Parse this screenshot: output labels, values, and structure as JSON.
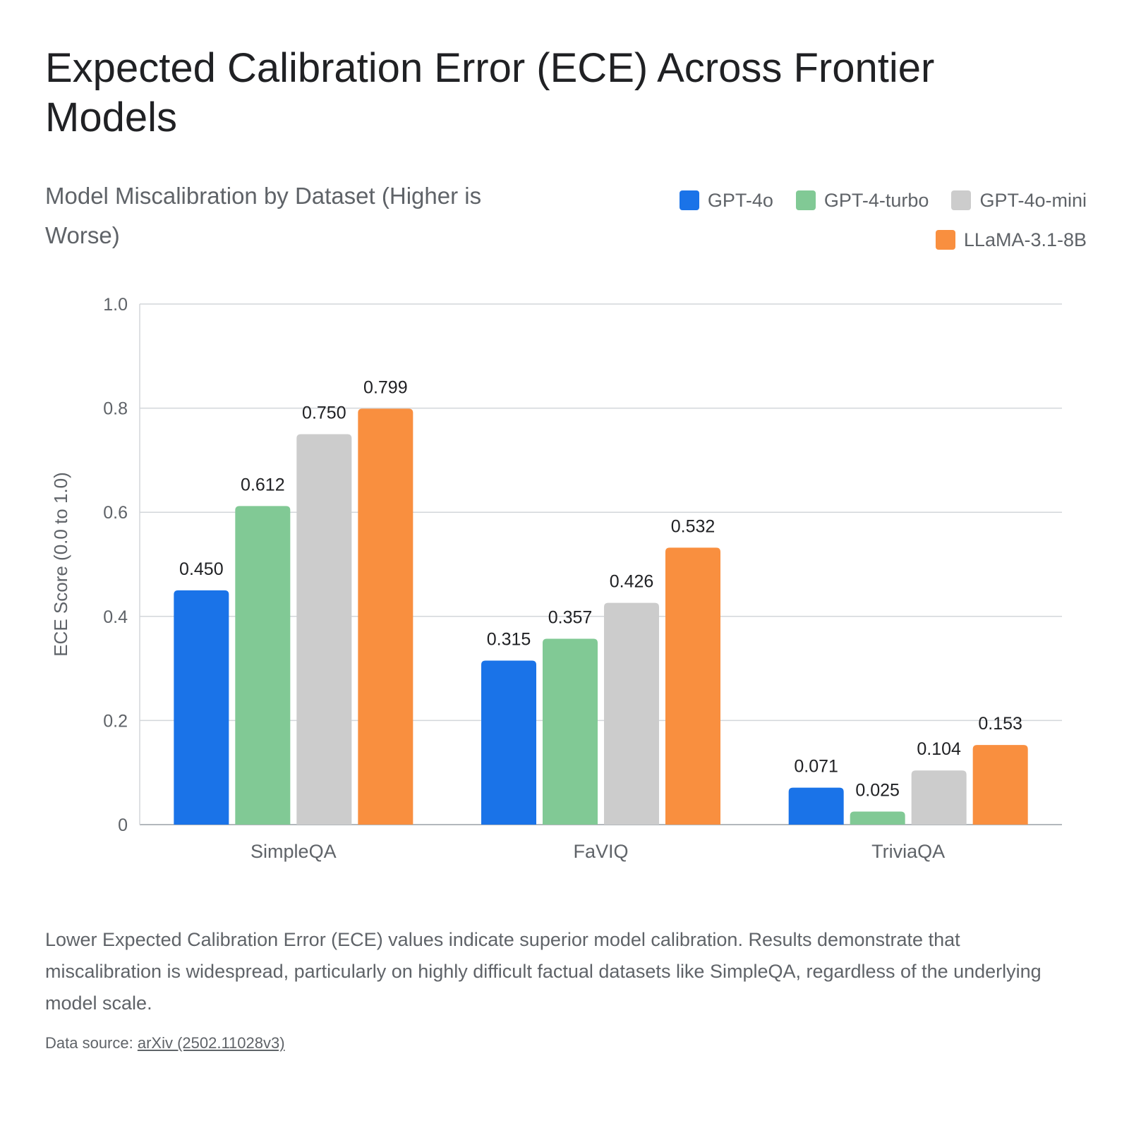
{
  "title": "Expected Calibration Error (ECE) Across Frontier Models",
  "subtitle": "Model Miscalibration by Dataset (Higher is Worse)",
  "caption": "Lower Expected Calibration Error (ECE) values indicate superior model calibration. Results demonstrate that miscalibration is widespread, particularly on highly difficult factual datasets like SimpleQA, regardless of the underlying model scale.",
  "source": {
    "prefix": "Data source: ",
    "link_text": "arXiv (2502.11028v3)"
  },
  "legend": [
    {
      "name": "GPT-4o",
      "color": "#1a73e8"
    },
    {
      "name": "GPT-4-turbo",
      "color": "#81c995"
    },
    {
      "name": "GPT-4o-mini",
      "color": "#cccccc"
    },
    {
      "name": "LLaMA-3.1-8B",
      "color": "#f98f3f"
    }
  ],
  "chart_data": {
    "type": "bar",
    "categories": [
      "SimpleQA",
      "FaVIQ",
      "TriviaQA"
    ],
    "series": [
      {
        "name": "GPT-4o",
        "color": "#1a73e8",
        "values": [
          0.45,
          0.315,
          0.071
        ],
        "labels": [
          "0.450",
          "0.315",
          "0.071"
        ]
      },
      {
        "name": "GPT-4-turbo",
        "color": "#81c995",
        "values": [
          0.612,
          0.357,
          0.025
        ],
        "labels": [
          "0.612",
          "0.357",
          "0.025"
        ]
      },
      {
        "name": "GPT-4o-mini",
        "color": "#cccccc",
        "values": [
          0.75,
          0.426,
          0.104
        ],
        "labels": [
          "0.750",
          "0.426",
          "0.104"
        ]
      },
      {
        "name": "LLaMA-3.1-8B",
        "color": "#f98f3f",
        "values": [
          0.799,
          0.532,
          0.153
        ],
        "labels": [
          "0.799",
          "0.532",
          "0.153"
        ]
      }
    ],
    "ylabel": "ECE Score (0.0 to 1.0)",
    "xlabel": "",
    "ylim": [
      0,
      1.0
    ],
    "yticks": [
      {
        "value": 0,
        "label": "0"
      },
      {
        "value": 0.2,
        "label": "0.2"
      },
      {
        "value": 0.4,
        "label": "0.4"
      },
      {
        "value": 0.6,
        "label": "0.6"
      },
      {
        "value": 0.8,
        "label": "0.8"
      },
      {
        "value": 1.0,
        "label": "1.0"
      }
    ],
    "grid": true,
    "legend_position": "top-right"
  }
}
